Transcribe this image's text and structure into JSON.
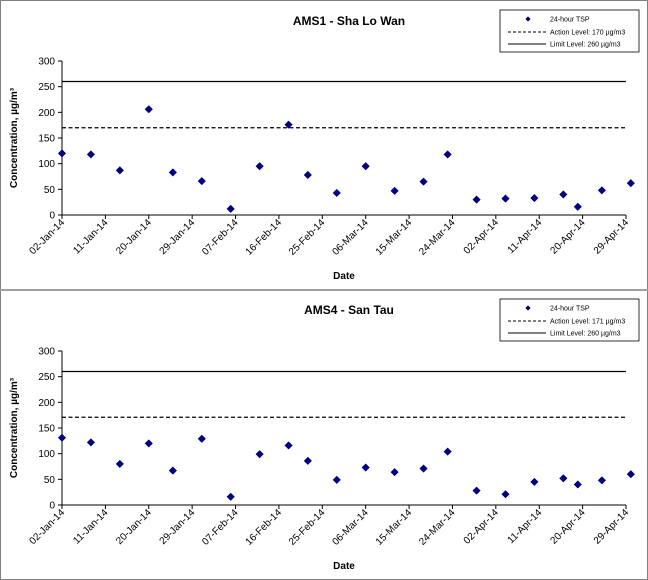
{
  "chart_data": [
    {
      "type": "scatter",
      "title": "AMS1 - Sha Lo Wan",
      "xlabel": "Date",
      "ylabel": "Concentration, µg/m³",
      "ylim": [
        0,
        300
      ],
      "yticks": [
        "0",
        "50",
        "100",
        "150",
        "200",
        "250",
        "300"
      ],
      "xticks": [
        "02-Jan-14",
        "11-Jan-14",
        "20-Jan-14",
        "29-Jan-14",
        "07-Feb-14",
        "16-Feb-14",
        "25-Feb-14",
        "06-Mar-14",
        "15-Mar-14",
        "24-Mar-14",
        "02-Apr-14",
        "11-Apr-14",
        "20-Apr-14",
        "29-Apr-14"
      ],
      "xlim": [
        "2014-01-02",
        "2014-04-29"
      ],
      "legend_position": "top-right",
      "series": [
        {
          "name": "24-hour TSP",
          "marker": "diamond",
          "color": "#000080",
          "points": [
            {
              "x": "2014-01-02",
              "y": 120
            },
            {
              "x": "2014-01-08",
              "y": 118
            },
            {
              "x": "2014-01-14",
              "y": 87
            },
            {
              "x": "2014-01-20",
              "y": 206
            },
            {
              "x": "2014-01-25",
              "y": 83
            },
            {
              "x": "2014-01-31",
              "y": 66
            },
            {
              "x": "2014-02-06",
              "y": 12
            },
            {
              "x": "2014-02-12",
              "y": 95
            },
            {
              "x": "2014-02-18",
              "y": 176
            },
            {
              "x": "2014-02-22",
              "y": 78
            },
            {
              "x": "2014-02-28",
              "y": 43
            },
            {
              "x": "2014-03-06",
              "y": 95
            },
            {
              "x": "2014-03-12",
              "y": 47
            },
            {
              "x": "2014-03-18",
              "y": 65
            },
            {
              "x": "2014-03-23",
              "y": 118
            },
            {
              "x": "2014-03-29",
              "y": 30
            },
            {
              "x": "2014-04-04",
              "y": 32
            },
            {
              "x": "2014-04-10",
              "y": 33
            },
            {
              "x": "2014-04-16",
              "y": 40
            },
            {
              "x": "2014-04-19",
              "y": 16
            },
            {
              "x": "2014-04-24",
              "y": 48
            },
            {
              "x": "2014-04-30",
              "y": 62
            }
          ]
        }
      ],
      "reference_lines": [
        {
          "name": "Action Level: 170 µg/m3",
          "y": 170,
          "style": "dashed"
        },
        {
          "name": "Limit Level: 260 µg/m3",
          "y": 260,
          "style": "solid"
        }
      ]
    },
    {
      "type": "scatter",
      "title": "AMS4 - San Tau",
      "xlabel": "Date",
      "ylabel": "Concentration, µg/m³",
      "ylim": [
        0,
        300
      ],
      "yticks": [
        "0",
        "50",
        "100",
        "150",
        "200",
        "250",
        "300"
      ],
      "xticks": [
        "02-Jan-14",
        "11-Jan-14",
        "20-Jan-14",
        "29-Jan-14",
        "07-Feb-14",
        "16-Feb-14",
        "25-Feb-14",
        "06-Mar-14",
        "15-Mar-14",
        "24-Mar-14",
        "02-Apr-14",
        "11-Apr-14",
        "20-Apr-14",
        "29-Apr-14"
      ],
      "xlim": [
        "2014-01-02",
        "2014-04-29"
      ],
      "legend_position": "top-right",
      "series": [
        {
          "name": "24-hour TSP",
          "marker": "diamond",
          "color": "#000080",
          "points": [
            {
              "x": "2014-01-02",
              "y": 131
            },
            {
              "x": "2014-01-08",
              "y": 122
            },
            {
              "x": "2014-01-14",
              "y": 80
            },
            {
              "x": "2014-01-20",
              "y": 120
            },
            {
              "x": "2014-01-25",
              "y": 67
            },
            {
              "x": "2014-01-31",
              "y": 129
            },
            {
              "x": "2014-02-06",
              "y": 16
            },
            {
              "x": "2014-02-12",
              "y": 99
            },
            {
              "x": "2014-02-18",
              "y": 116
            },
            {
              "x": "2014-02-22",
              "y": 86
            },
            {
              "x": "2014-02-28",
              "y": 49
            },
            {
              "x": "2014-03-06",
              "y": 73
            },
            {
              "x": "2014-03-12",
              "y": 64
            },
            {
              "x": "2014-03-18",
              "y": 71
            },
            {
              "x": "2014-03-23",
              "y": 104
            },
            {
              "x": "2014-03-29",
              "y": 28
            },
            {
              "x": "2014-04-04",
              "y": 21
            },
            {
              "x": "2014-04-10",
              "y": 45
            },
            {
              "x": "2014-04-16",
              "y": 52
            },
            {
              "x": "2014-04-19",
              "y": 40
            },
            {
              "x": "2014-04-24",
              "y": 48
            },
            {
              "x": "2014-04-30",
              "y": 60
            }
          ]
        }
      ],
      "reference_lines": [
        {
          "name": "Action Level: 171 µg/m3",
          "y": 171,
          "style": "dashed"
        },
        {
          "name": "Limit Level: 260 µg/m3",
          "y": 260,
          "style": "solid"
        }
      ]
    }
  ]
}
